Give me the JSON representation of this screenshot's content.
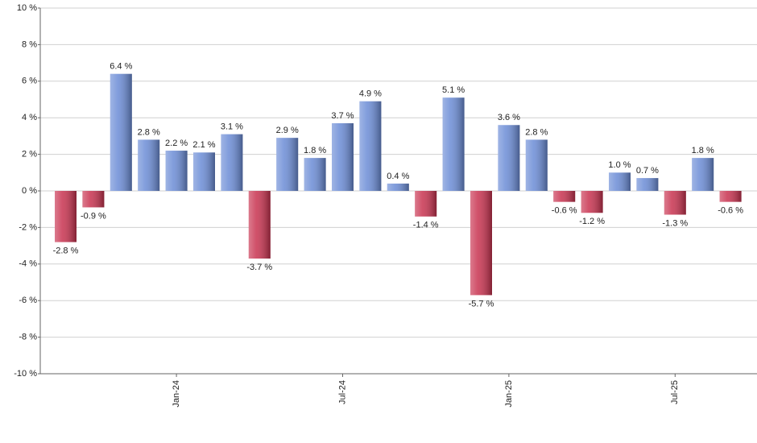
{
  "chart_data": {
    "type": "bar",
    "categories": [
      null,
      null,
      null,
      null,
      "Jan-24",
      null,
      null,
      null,
      null,
      null,
      "Jul-24",
      null,
      null,
      null,
      null,
      null,
      "Jan-25",
      null,
      null,
      null,
      null,
      null,
      "Jul-25",
      null,
      null
    ],
    "values": [
      -2.8,
      -0.9,
      6.4,
      2.8,
      2.2,
      2.1,
      3.1,
      -3.7,
      2.9,
      1.8,
      3.7,
      4.9,
      0.4,
      -1.4,
      5.1,
      -5.7,
      3.6,
      2.8,
      -0.6,
      -1.2,
      1.0,
      0.7,
      -1.3,
      1.8,
      -0.6
    ],
    "value_labels": [
      "-2.8 %",
      "-0.9 %",
      "6.4 %",
      "2.8 %",
      "2.2 %",
      "2.1 %",
      "3.1 %",
      "-3.7 %",
      "2.9 %",
      "1.8 %",
      "3.7 %",
      "4.9 %",
      "0.4 %",
      "-1.4 %",
      "5.1 %",
      "-5.7 %",
      "3.6 %",
      "2.8 %",
      "-0.6 %",
      "-1.2 %",
      "1.0 %",
      "0.7 %",
      "-1.3 %",
      "1.8 %",
      "-0.6 %"
    ],
    "color_positive": "#6b8cd6",
    "color_negative": "#c8324f",
    "ylim": [
      -10,
      10
    ],
    "yticks": [
      {
        "value": -10,
        "label": "-10 %"
      },
      {
        "value": -8,
        "label": "-8 %"
      },
      {
        "value": -6,
        "label": "-6 %"
      },
      {
        "value": -4,
        "label": "-4 %"
      },
      {
        "value": -2,
        "label": "-2 %"
      },
      {
        "value": 0,
        "label": "0 %"
      },
      {
        "value": 2,
        "label": "2 %"
      },
      {
        "value": 4,
        "label": "4 %"
      },
      {
        "value": 6,
        "label": "6 %"
      },
      {
        "value": 8,
        "label": "8 %"
      },
      {
        "value": 10,
        "label": "10 %"
      }
    ],
    "grid": true
  }
}
